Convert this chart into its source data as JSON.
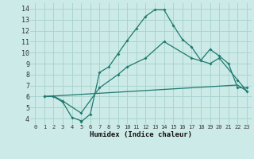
{
  "xlabel": "Humidex (Indice chaleur)",
  "bg_color": "#cceae7",
  "line_color": "#1e7a6e",
  "grid_color": "#aad4d0",
  "xlim": [
    -0.5,
    23.5
  ],
  "ylim": [
    3.5,
    14.5
  ],
  "xticks": [
    0,
    1,
    2,
    3,
    4,
    5,
    6,
    7,
    8,
    9,
    10,
    11,
    12,
    13,
    14,
    15,
    16,
    17,
    18,
    19,
    20,
    21,
    22,
    23
  ],
  "yticks": [
    4,
    5,
    6,
    7,
    8,
    9,
    10,
    11,
    12,
    13,
    14
  ],
  "line1_x": [
    1,
    2,
    3,
    4,
    5,
    5,
    6,
    7,
    8,
    9,
    10,
    11,
    12,
    13,
    14,
    15,
    16,
    17,
    18,
    19,
    20,
    21,
    22,
    23
  ],
  "line1_y": [
    6.0,
    6.0,
    5.5,
    4.1,
    3.8,
    3.7,
    4.4,
    8.2,
    8.7,
    9.9,
    11.1,
    12.2,
    13.3,
    13.9,
    13.9,
    12.5,
    11.2,
    10.5,
    9.3,
    10.3,
    9.7,
    9.0,
    6.8,
    6.8
  ],
  "line2_x": [
    1,
    2,
    3,
    4,
    5,
    6,
    7,
    8,
    9,
    10,
    11,
    12,
    13,
    14,
    15,
    16,
    17,
    18,
    19,
    20,
    21,
    22,
    23
  ],
  "line2_y": [
    6.0,
    6.05,
    6.1,
    6.15,
    6.2,
    6.25,
    6.3,
    6.35,
    6.4,
    6.45,
    6.5,
    6.55,
    6.6,
    6.65,
    6.7,
    6.75,
    6.8,
    6.85,
    6.9,
    6.95,
    7.0,
    7.05,
    6.5
  ],
  "line3_x": [
    1,
    2,
    3,
    5,
    7,
    9,
    10,
    12,
    14,
    17,
    19,
    20,
    22,
    23
  ],
  "line3_y": [
    6.0,
    6.05,
    5.6,
    4.5,
    6.8,
    8.0,
    8.7,
    9.5,
    11.0,
    9.5,
    9.0,
    9.5,
    7.5,
    6.5
  ]
}
